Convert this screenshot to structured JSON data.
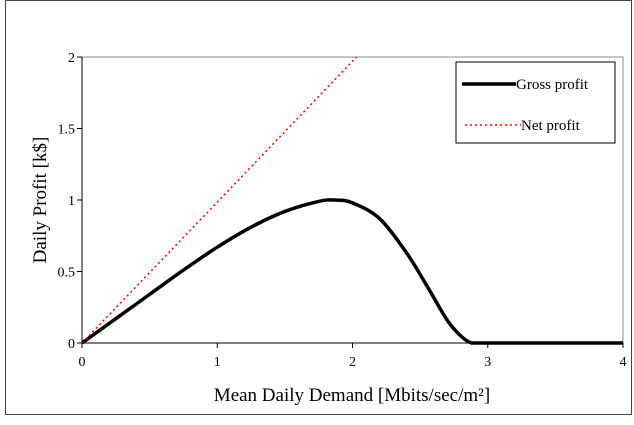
{
  "chart_data": {
    "type": "line",
    "title": "",
    "xlabel": "Mean Daily Demand [Mbits/sec/m²]",
    "ylabel": "Daily Profit [k$]",
    "xlim": [
      0,
      4
    ],
    "ylim": [
      0,
      2
    ],
    "x_ticks": [
      "0",
      "1",
      "2",
      "3",
      "4"
    ],
    "y_ticks": [
      "0",
      "0.5",
      "1",
      "1.5",
      "2"
    ],
    "grid": false,
    "legend_position": "top-right",
    "series": [
      {
        "name": "Gross profit",
        "style": "solid",
        "color": "#000000",
        "x": [
          0,
          0.25,
          0.5,
          0.75,
          1.0,
          1.25,
          1.5,
          1.75,
          1.87,
          2.0,
          2.2,
          2.4,
          2.55,
          2.7,
          2.8,
          2.88,
          2.95,
          3.0,
          3.5,
          4.0
        ],
        "y": [
          0,
          0.17,
          0.34,
          0.51,
          0.67,
          0.81,
          0.92,
          0.99,
          1.0,
          0.98,
          0.87,
          0.63,
          0.4,
          0.16,
          0.05,
          0.0,
          0.0,
          0.0,
          0.0,
          0.0
        ]
      },
      {
        "name": "Net profit",
        "style": "dotted",
        "color": "#ff0000",
        "x": [
          0,
          2.03
        ],
        "y": [
          0,
          2.0
        ]
      }
    ]
  }
}
